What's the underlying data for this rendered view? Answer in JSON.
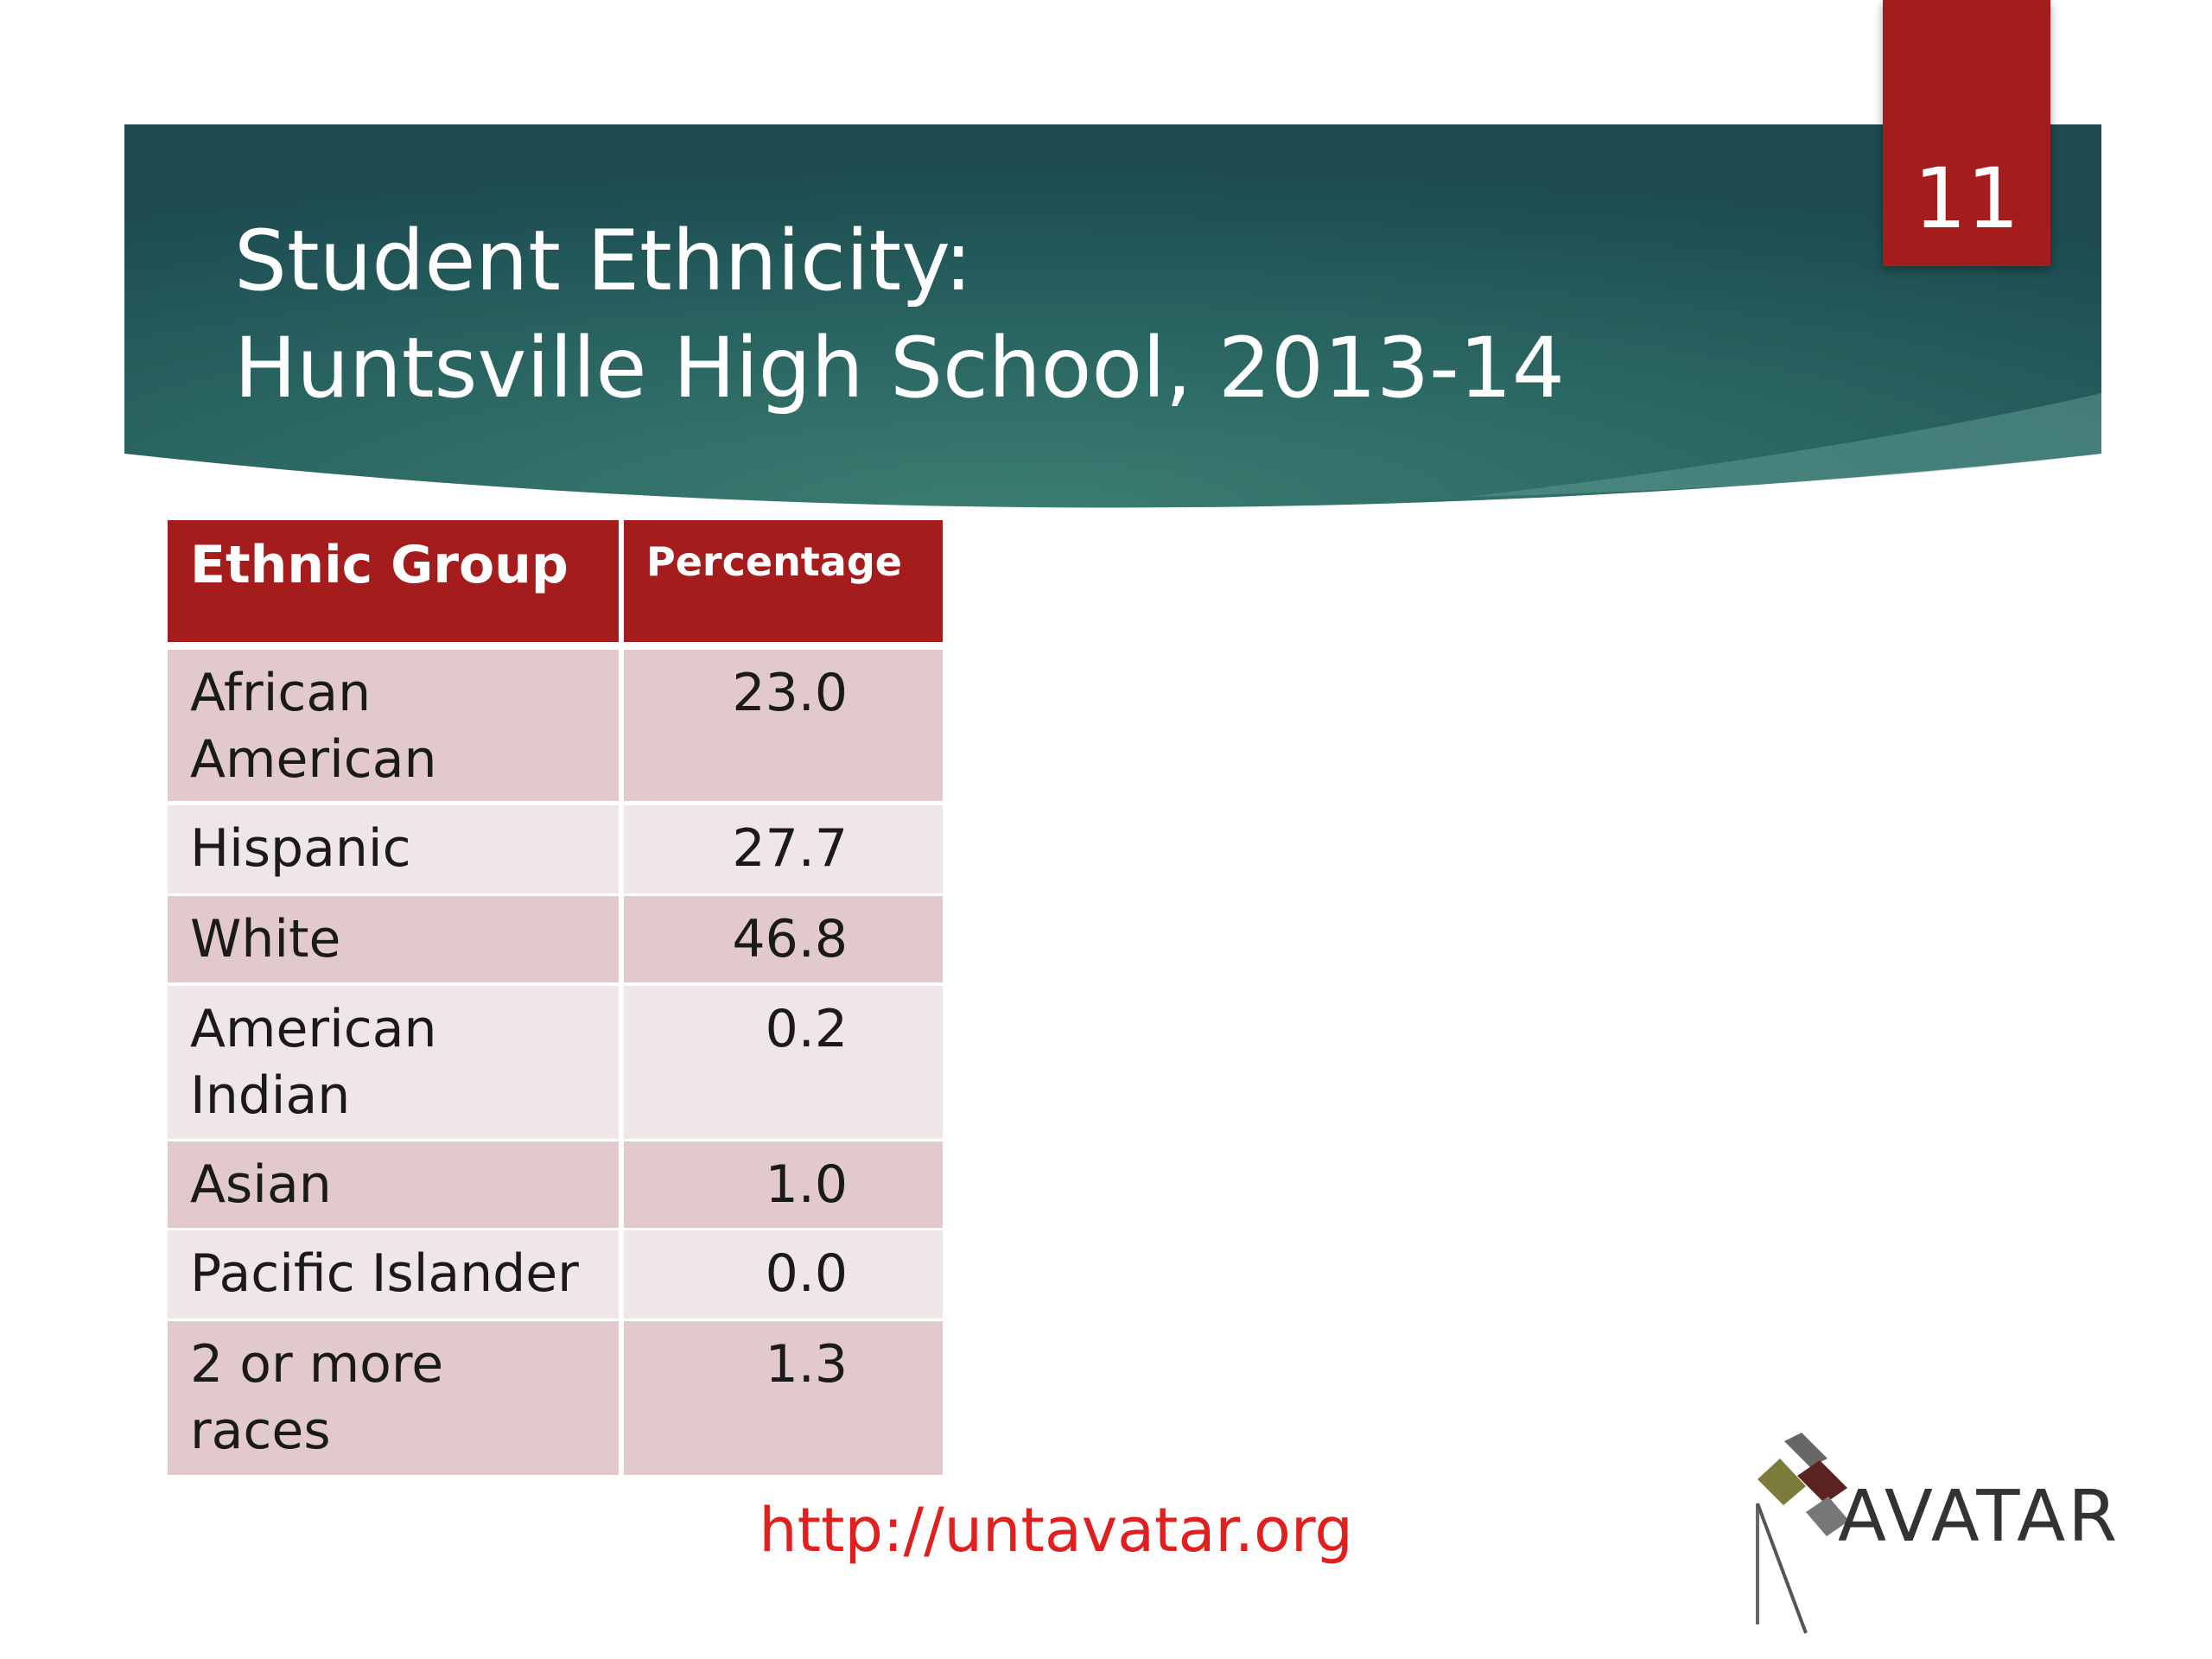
{
  "header": {
    "title_lines": [
      "Student Ethnicity:",
      "Huntsville High School, 2013-14"
    ],
    "slide_number": "11"
  },
  "table": {
    "columns": [
      "Ethnic  Group",
      "Percentage"
    ],
    "rows": [
      [
        [
          "African",
          "American"
        ],
        "23.0"
      ],
      [
        [
          "Hispanic"
        ],
        "27.7"
      ],
      [
        [
          "White"
        ],
        "46.8"
      ],
      [
        [
          "American",
          "Indian"
        ],
        "0.2"
      ],
      [
        [
          "Asian"
        ],
        "1.0"
      ],
      [
        [
          "Pacific Islander"
        ],
        "0.0"
      ],
      [
        [
          "2 or more",
          "races"
        ],
        "1.3"
      ]
    ]
  },
  "footer": {
    "url": "http://untavatar.org",
    "logo": "AVATAR"
  }
}
